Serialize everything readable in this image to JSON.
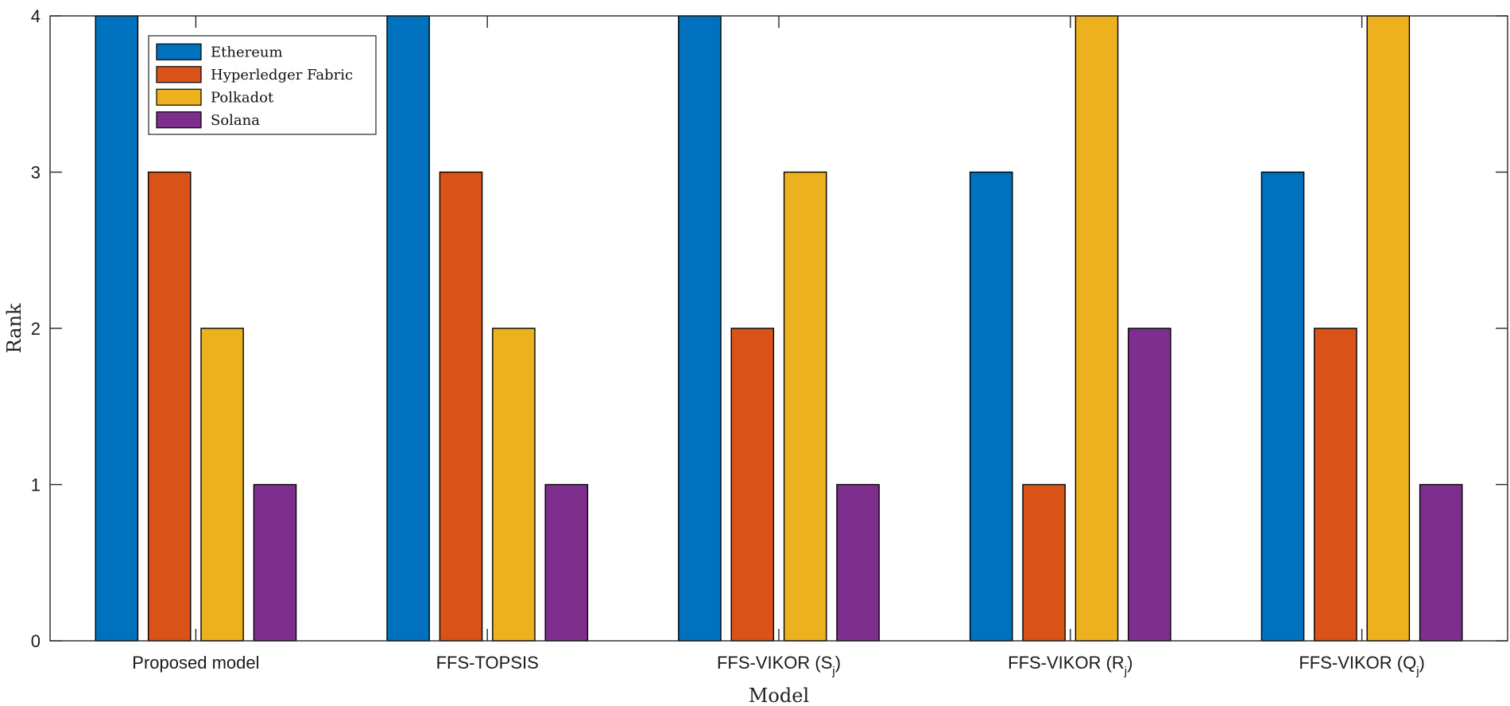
{
  "chart_data": {
    "type": "bar",
    "title": "",
    "xlabel": "Model",
    "ylabel": "Rank",
    "ylim": [
      0,
      4
    ],
    "yticks": [
      0,
      1,
      2,
      3,
      4
    ],
    "categories": [
      {
        "label": "Proposed model",
        "sub": ""
      },
      {
        "label": "FFS-TOPSIS",
        "sub": ""
      },
      {
        "label": "FFS-VIKOR (S",
        "sub": "j",
        "close": ")"
      },
      {
        "label": "FFS-VIKOR (R",
        "sub": "j",
        "close": ")"
      },
      {
        "label": "FFS-VIKOR (Q",
        "sub": "j",
        "close": ")"
      }
    ],
    "series": [
      {
        "name": "Ethereum",
        "color": "#0072BD",
        "values": [
          4,
          4,
          4,
          3,
          3
        ]
      },
      {
        "name": "Hyperledger Fabric",
        "color": "#D95319",
        "values": [
          3,
          3,
          2,
          1,
          2
        ]
      },
      {
        "name": "Polkadot",
        "color": "#EDB120",
        "values": [
          2,
          2,
          3,
          4,
          4
        ]
      },
      {
        "name": "Solana",
        "color": "#7E2F8E",
        "values": [
          1,
          1,
          1,
          2,
          1
        ]
      }
    ],
    "grid": false,
    "legend_position": "top-left"
  }
}
